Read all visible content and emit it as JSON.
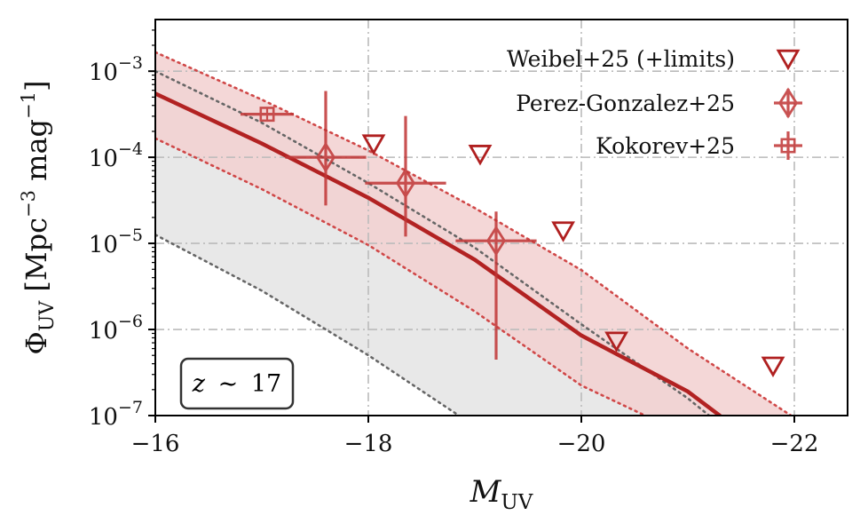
{
  "chart_data": {
    "type": "scatter",
    "title": "",
    "xlabel": {
      "main": "M",
      "sub": "UV"
    },
    "ylabel": {
      "main": "Φ",
      "sub": "UV",
      "units_open": " [Mpc",
      "units_exp1": "−3",
      "units_mid": " mag",
      "units_exp2": "−1",
      "units_close": "]"
    },
    "x_direction": "reversed",
    "xlim": [
      -16,
      -22.5
    ],
    "ylim_log10": [
      -7,
      -2.4
    ],
    "grid": true,
    "x_ticks": [
      {
        "value": -16,
        "label": "−16"
      },
      {
        "value": -18,
        "label": "−18"
      },
      {
        "value": -20,
        "label": "−20"
      },
      {
        "value": -22,
        "label": "−22"
      }
    ],
    "y_ticks": [
      {
        "log": -3,
        "base": "10",
        "exp": "−3"
      },
      {
        "log": -4,
        "base": "10",
        "exp": "−4"
      },
      {
        "log": -5,
        "base": "10",
        "exp": "−5"
      },
      {
        "log": -6,
        "base": "10",
        "exp": "−6"
      },
      {
        "log": -7,
        "base": "10",
        "exp": "−7"
      }
    ],
    "redshift_label": {
      "var": "z",
      "rel": "∼",
      "value": "17"
    },
    "model": {
      "name": "median",
      "x": [
        -16,
        -17,
        -18,
        -19,
        -20,
        -21,
        -21.3
      ],
      "log_phi": [
        -3.26,
        -3.84,
        -4.47,
        -5.19,
        -6.07,
        -6.72,
        -7.0
      ]
    },
    "model_band": {
      "x": [
        -16,
        -17,
        -18,
        -19,
        -20,
        -21,
        -21.97
      ],
      "upper_log_phi": [
        -2.78,
        -3.33,
        -3.92,
        -4.59,
        -5.31,
        -6.22,
        -7.0
      ],
      "lower_log_phi": [
        -3.78,
        -4.37,
        -5.02,
        -5.79,
        -6.85,
        -7.0
      ]
    },
    "literature_band": {
      "x": [
        -16,
        -17,
        -18,
        -19,
        -20,
        -21,
        -21.2
      ],
      "upper_log_phi": [
        -3.0,
        -3.6,
        -4.3,
        -5.05,
        -5.94,
        -6.8,
        -7.0
      ],
      "lower_log_phi": [
        -4.9,
        -5.55,
        -6.3,
        -7.0
      ]
    },
    "lower_line": {
      "x": [
        -16,
        -17,
        -18,
        -18.85
      ],
      "log_phi": [
        -4.9,
        -5.55,
        -6.3,
        -7.0
      ]
    },
    "series": [
      {
        "name": "Weibel+25 (+limits)",
        "marker": "triangle-down-open",
        "color": "#b02020",
        "points": [
          {
            "x": -18.05,
            "log_phi": -3.84
          },
          {
            "x": -19.05,
            "log_phi": -3.96
          },
          {
            "x": -19.83,
            "log_phi": -4.85
          },
          {
            "x": -20.33,
            "log_phi": -6.13
          },
          {
            "x": -21.8,
            "log_phi": -6.42
          }
        ]
      },
      {
        "name": "Perez-Gonzalez+25",
        "marker": "diamond-open",
        "color": "#c03535",
        "points": [
          {
            "x": -17.6,
            "log_phi": -4.0,
            "xerr": 0.38,
            "log_lo": -4.56,
            "log_hi": -3.23
          },
          {
            "x": -18.35,
            "log_phi": -4.3,
            "xerr": 0.38,
            "log_lo": -4.92,
            "log_hi": -3.52
          },
          {
            "x": -19.2,
            "log_phi": -4.97,
            "xerr": 0.38,
            "log_lo": -6.35,
            "log_hi": -4.63
          }
        ]
      },
      {
        "name": "Kokorev+25",
        "marker": "square-plus-open",
        "color": "#c03535",
        "points": [
          {
            "x": -17.05,
            "log_phi": -3.5,
            "xerr": 0.25,
            "log_lo": -3.5,
            "log_hi": -3.5
          }
        ]
      }
    ],
    "legend": {
      "position": "top-right",
      "entries": [
        "Weibel+25 (+limits)",
        "Perez-Gonzalez+25",
        "Kokorev+25"
      ]
    },
    "colors": {
      "model_line": "#b22222",
      "band_fill": "#f2d0d0",
      "band_edge": "#d04848",
      "literature_fill": "#e8e8e8",
      "literature_line": "#666666",
      "grid": "#bbbbbb"
    }
  }
}
